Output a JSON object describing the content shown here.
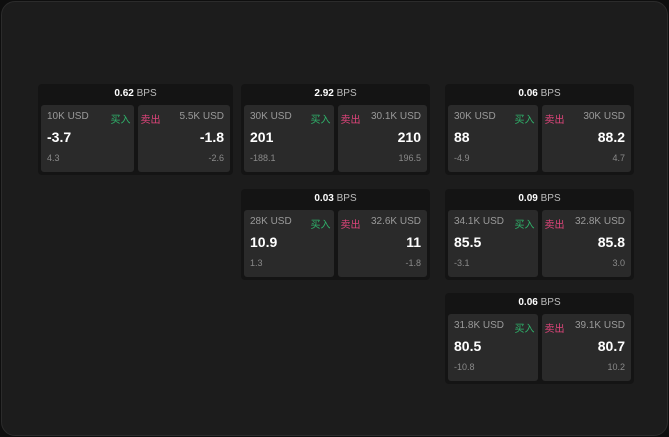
{
  "unit": "BPS",
  "buy_label": "买入",
  "sell_label": "卖出",
  "colors": {
    "buy": "#2fb36b",
    "sell": "#e0457b"
  },
  "cards": [
    {
      "spread": "0.62",
      "buy": {
        "size": "10K USD",
        "price": "-3.7",
        "change": "4.3"
      },
      "sell": {
        "size": "5.5K USD",
        "price": "-1.8",
        "change": "-2.6"
      }
    },
    {
      "spread": "2.92",
      "buy": {
        "size": "30K USD",
        "price": "201",
        "change": "-188.1"
      },
      "sell": {
        "size": "30.1K USD",
        "price": "210",
        "change": "196.5"
      }
    },
    {
      "spread": "0.06",
      "buy": {
        "size": "30K USD",
        "price": "88",
        "change": "-4.9"
      },
      "sell": {
        "size": "30K USD",
        "price": "88.2",
        "change": "4.7"
      }
    },
    {
      "spread": "0.03",
      "buy": {
        "size": "28K USD",
        "price": "10.9",
        "change": "1.3"
      },
      "sell": {
        "size": "32.6K USD",
        "price": "11",
        "change": "-1.8"
      }
    },
    {
      "spread": "0.09",
      "buy": {
        "size": "34.1K USD",
        "price": "85.5",
        "change": "-3.1"
      },
      "sell": {
        "size": "32.8K USD",
        "price": "85.8",
        "change": "3.0"
      }
    },
    {
      "spread": "0.06",
      "buy": {
        "size": "31.8K USD",
        "price": "80.5",
        "change": "-10.8"
      },
      "sell": {
        "size": "39.1K USD",
        "price": "80.7",
        "change": "10.2"
      }
    }
  ]
}
